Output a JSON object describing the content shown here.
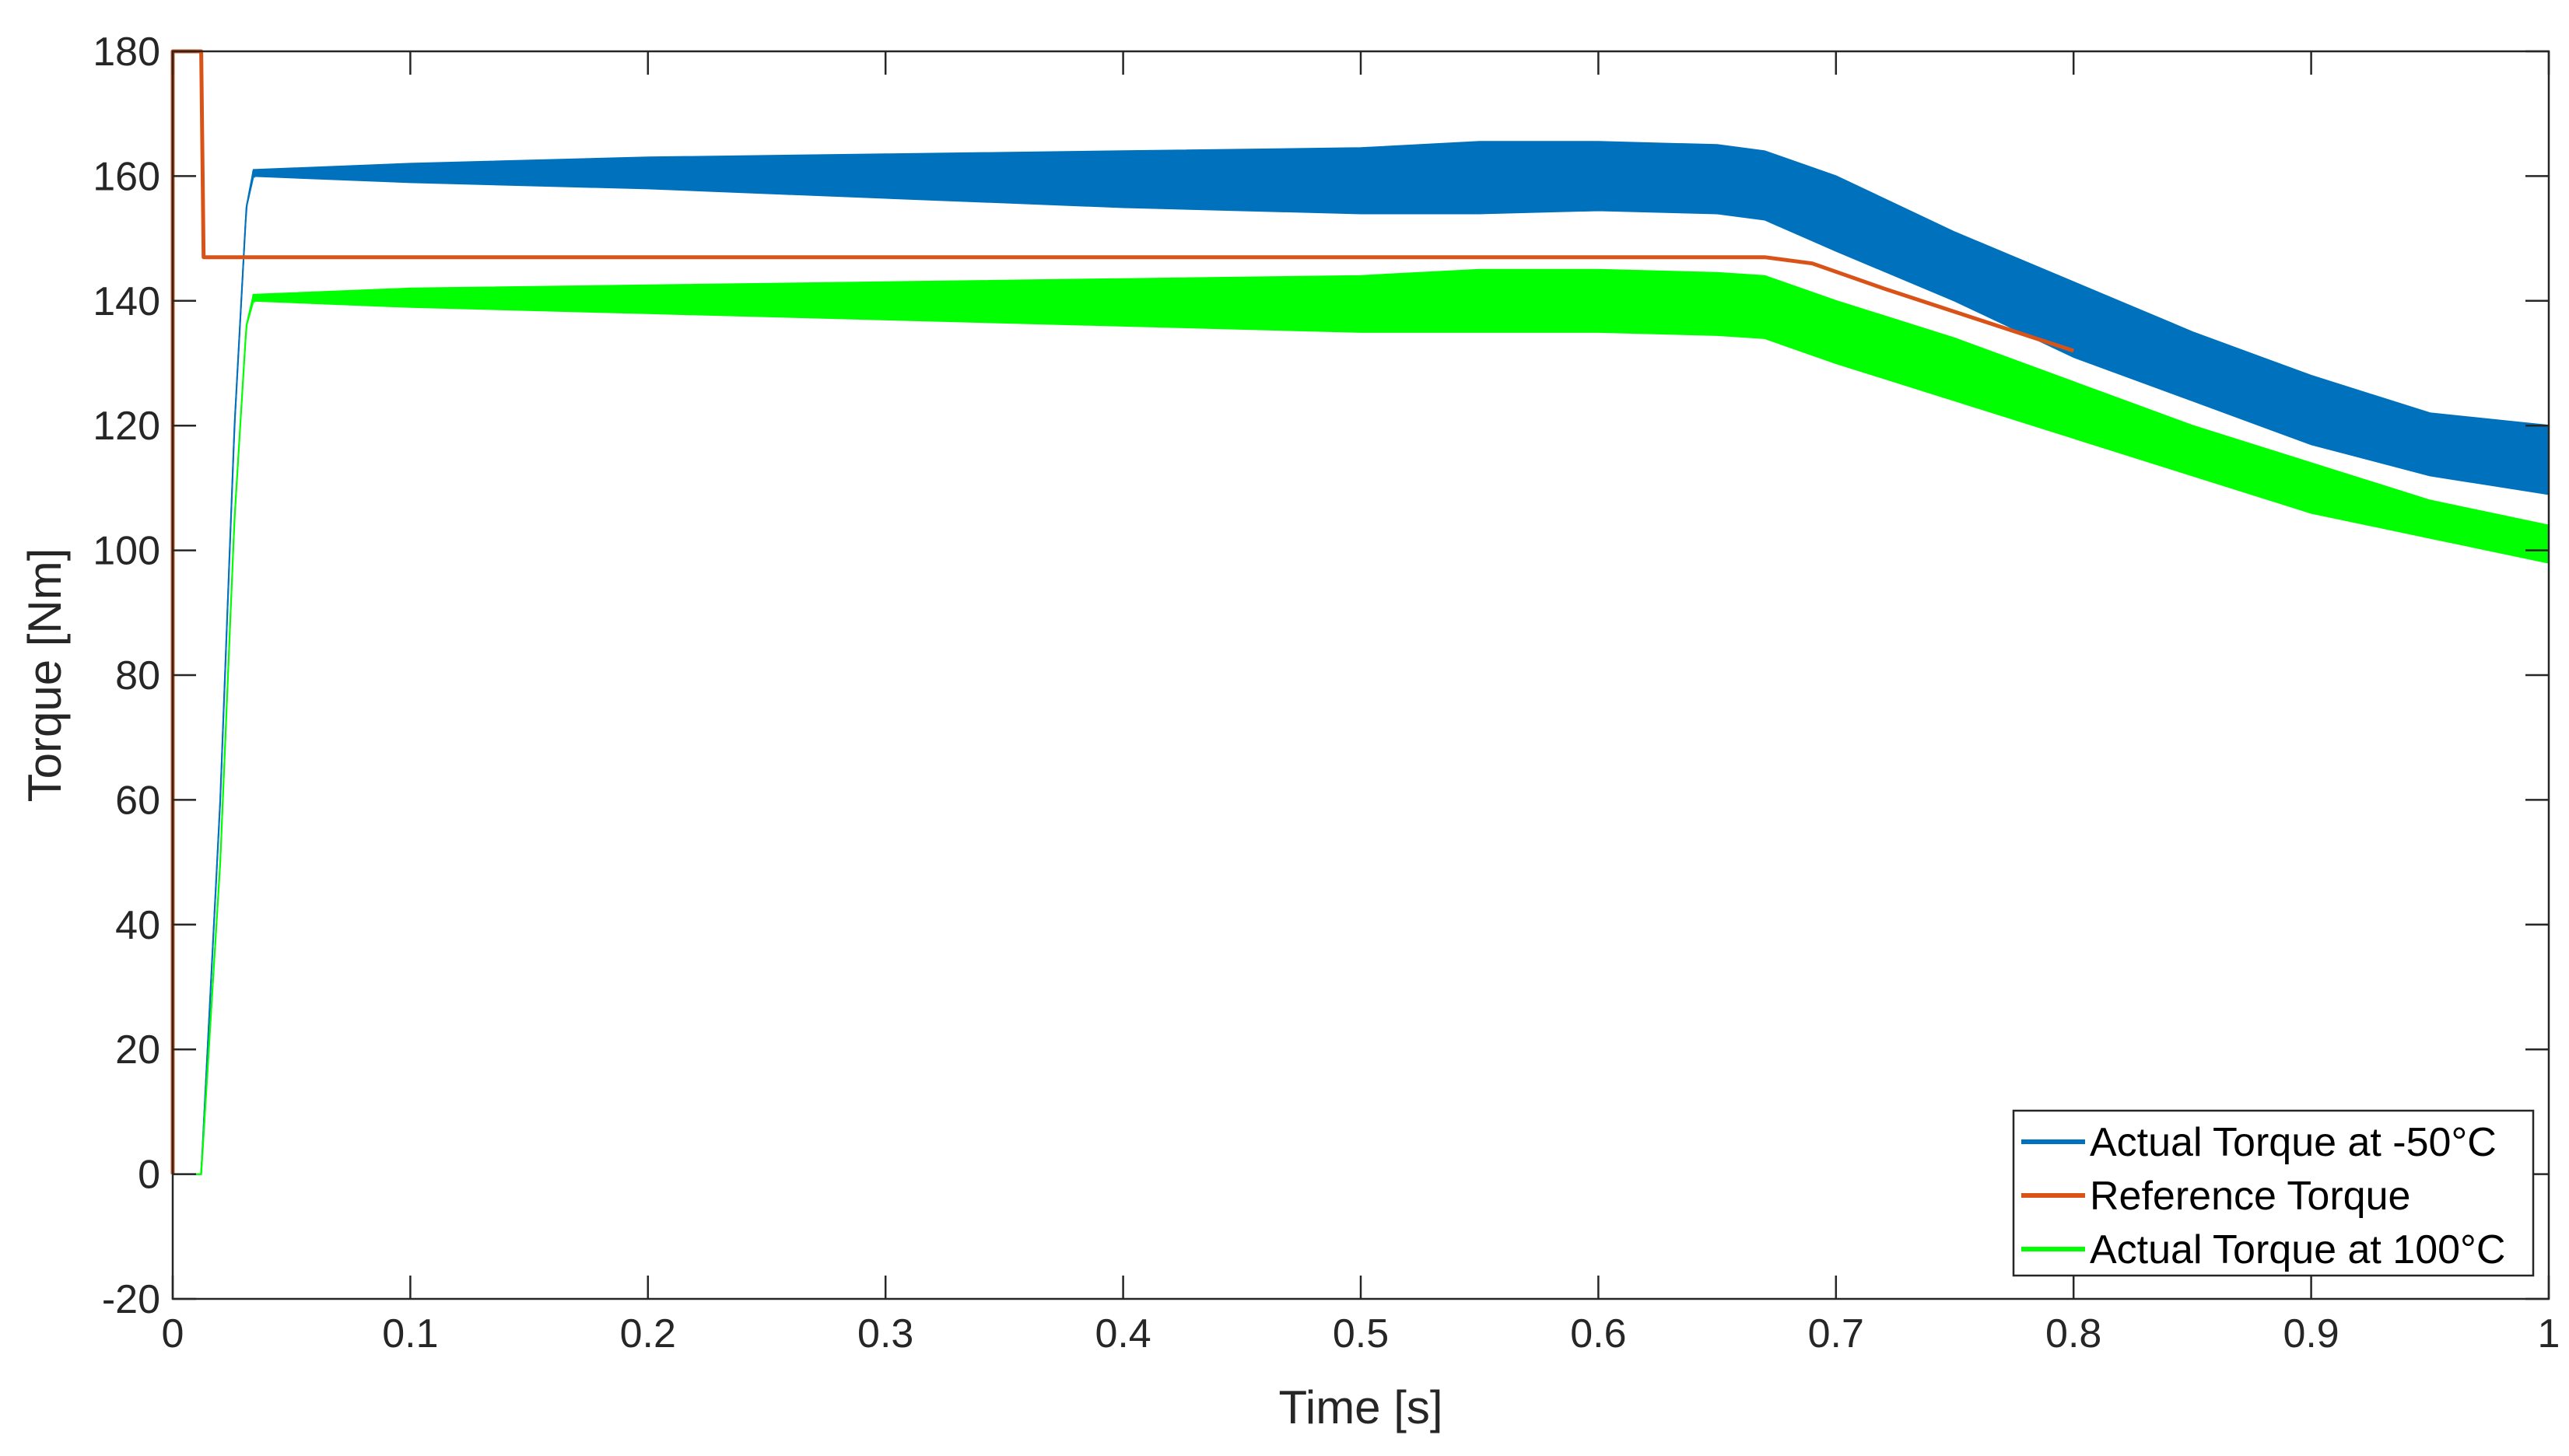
{
  "chart_data": {
    "type": "line",
    "title": "",
    "xlabel": "Time [s]",
    "ylabel": "Torque [Nm]",
    "xlim": [
      0,
      1
    ],
    "ylim": [
      -20,
      180
    ],
    "xticks": [
      0,
      0.1,
      0.2,
      0.3,
      0.4,
      0.5,
      0.6,
      0.7,
      0.8,
      0.9,
      1
    ],
    "xtick_labels": [
      "0",
      "0.1",
      "0.2",
      "0.3",
      "0.4",
      "0.5",
      "0.6",
      "0.7",
      "0.8",
      "0.9",
      "1"
    ],
    "yticks": [
      -20,
      0,
      20,
      40,
      60,
      80,
      100,
      120,
      140,
      160,
      180
    ],
    "ytick_labels": [
      "-20",
      "0",
      "20",
      "40",
      "60",
      "80",
      "100",
      "120",
      "140",
      "160",
      "180"
    ],
    "grid": false,
    "legend_position": "bottom-right",
    "series": [
      {
        "name": "Actual Torque at -50°C",
        "color": "#0072BD",
        "style": "band",
        "x": [
          0,
          0.012,
          0.02,
          0.026,
          0.031,
          0.034,
          0.1,
          0.2,
          0.3,
          0.4,
          0.5,
          0.55,
          0.6,
          0.65,
          0.67,
          0.7,
          0.75,
          0.8,
          0.85,
          0.9,
          0.95,
          1.0
        ],
        "upper": [
          0,
          0,
          60,
          120,
          155,
          161,
          162,
          163,
          163.5,
          164,
          164.5,
          165.5,
          165.5,
          165,
          164,
          160,
          151,
          143,
          135,
          128,
          122,
          120
        ],
        "lower": [
          0,
          0,
          60,
          120,
          155,
          160,
          159,
          158,
          156.5,
          155,
          154,
          154,
          154.5,
          154,
          153,
          148,
          140,
          131,
          124,
          117,
          112,
          109
        ]
      },
      {
        "name": "Reference Torque",
        "color": "#D95319",
        "style": "line",
        "x": [
          0,
          0,
          0.012,
          0.013,
          0.67,
          0.69,
          0.72,
          0.76,
          0.8
        ],
        "y": [
          0,
          180,
          180,
          147,
          147,
          146,
          142,
          137,
          132
        ]
      },
      {
        "name": "Actual Torque at 100°C",
        "color": "#00FF00",
        "style": "band",
        "x": [
          0,
          0.012,
          0.02,
          0.026,
          0.031,
          0.034,
          0.1,
          0.2,
          0.3,
          0.4,
          0.5,
          0.55,
          0.6,
          0.65,
          0.67,
          0.7,
          0.75,
          0.8,
          0.85,
          0.9,
          0.95,
          1.0
        ],
        "upper": [
          0,
          0,
          50,
          105,
          136,
          141,
          142,
          142.5,
          143,
          143.5,
          144,
          145,
          145,
          144.5,
          144,
          140,
          134,
          127,
          120,
          114,
          108,
          104
        ],
        "lower": [
          0,
          0,
          50,
          105,
          136,
          140,
          139,
          138,
          137,
          136,
          135,
          135,
          135,
          134.5,
          134,
          130,
          124,
          118,
          112,
          106,
          102,
          98
        ]
      }
    ]
  }
}
